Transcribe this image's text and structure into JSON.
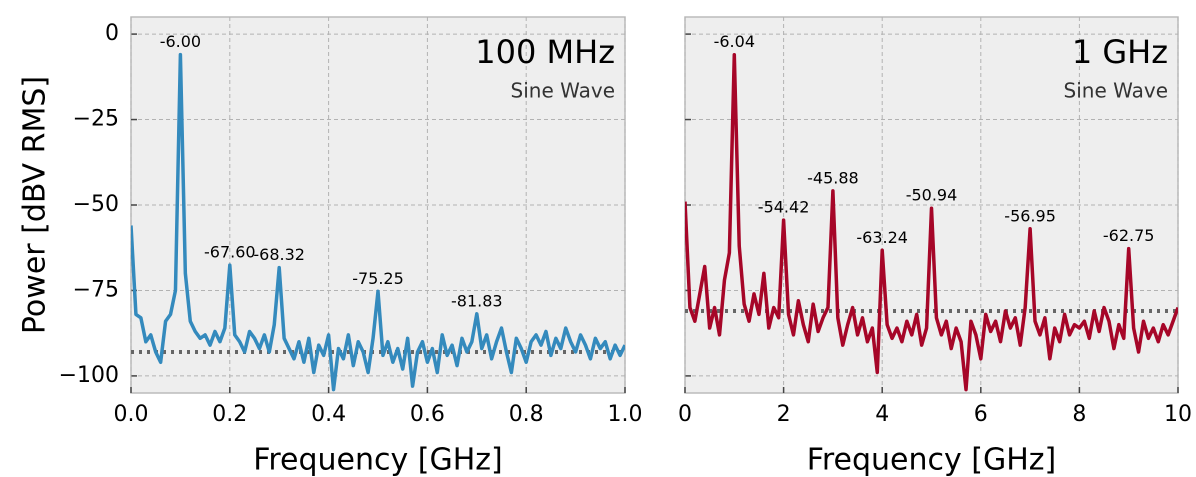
{
  "chart_data": [
    {
      "type": "line",
      "title": "100 MHz",
      "subtitle": "Sine Wave",
      "xlabel": "Frequency [GHz]",
      "ylabel": "Power [dBV RMS]",
      "xlim": [
        0,
        1.0
      ],
      "ylim": [
        -105,
        5
      ],
      "xticks": [
        {
          "value": 0,
          "label": "0.0"
        },
        0.2,
        0.4,
        0.6,
        0.8,
        {
          "value": 1.0,
          "label": "1.0"
        }
      ],
      "yticks": [
        {
          "value": -100,
          "label": "−100"
        },
        {
          "value": -75,
          "label": "−75"
        },
        {
          "value": -50,
          "label": "−50"
        },
        {
          "value": -25,
          "label": "−25"
        },
        0
      ],
      "ytick_labels": true,
      "grid": true,
      "noise_floor": -93,
      "x": [
        0,
        0.01,
        0.02,
        0.03,
        0.04,
        0.05,
        0.06,
        0.07,
        0.08,
        0.09,
        0.1,
        0.11,
        0.12,
        0.13,
        0.14,
        0.15,
        0.16,
        0.17,
        0.18,
        0.19,
        0.2,
        0.21,
        0.22,
        0.23,
        0.24,
        0.25,
        0.26,
        0.27,
        0.28,
        0.29,
        0.3,
        0.31,
        0.32,
        0.33,
        0.34,
        0.35,
        0.36,
        0.37,
        0.38,
        0.39,
        0.4,
        0.41,
        0.42,
        0.43,
        0.44,
        0.45,
        0.46,
        0.47,
        0.48,
        0.49,
        0.5,
        0.51,
        0.52,
        0.53,
        0.54,
        0.55,
        0.56,
        0.57,
        0.58,
        0.59,
        0.6,
        0.61,
        0.62,
        0.63,
        0.64,
        0.65,
        0.66,
        0.67,
        0.68,
        0.69,
        0.7,
        0.71,
        0.72,
        0.73,
        0.74,
        0.75,
        0.76,
        0.77,
        0.78,
        0.79,
        0.8,
        0.81,
        0.82,
        0.83,
        0.84,
        0.85,
        0.86,
        0.87,
        0.88,
        0.89,
        0.9,
        0.91,
        0.92,
        0.93,
        0.94,
        0.95,
        0.96,
        0.97,
        0.98,
        0.99,
        1.0
      ],
      "series": [
        {
          "color": "#348abd",
          "values": [
            -56,
            -82,
            -83,
            -90,
            -88,
            -93,
            -96,
            -84,
            -82,
            -75,
            -6,
            -70,
            -84,
            -87,
            -89,
            -88,
            -91,
            -87,
            -90,
            -86,
            -67.6,
            -88,
            -90,
            -93,
            -87,
            -89,
            -92,
            -88,
            -93,
            -85,
            -68.32,
            -89,
            -92,
            -95,
            -90,
            -96,
            -89,
            -99,
            -91,
            -94,
            -88,
            -104,
            -92,
            -95,
            -88,
            -97,
            -90,
            -93,
            -99,
            -89,
            -75.25,
            -94,
            -90,
            -96,
            -92,
            -98,
            -89,
            -103,
            -93,
            -90,
            -96,
            -92,
            -99,
            -88,
            -94,
            -91,
            -97,
            -89,
            -93,
            -90,
            -81.83,
            -92,
            -88,
            -95,
            -90,
            -86,
            -93,
            -99,
            -89,
            -92,
            -96,
            -90,
            -88,
            -91,
            -87,
            -94,
            -89,
            -92,
            -86,
            -90,
            -93,
            -88,
            -91,
            -95,
            -89,
            -92,
            -90,
            -95,
            -91,
            -94,
            -91
          ]
        }
      ],
      "annotations": [
        {
          "x": 0.1,
          "y": -6.0,
          "label": "-6.00"
        },
        {
          "x": 0.2,
          "y": -67.6,
          "label": "-67.60"
        },
        {
          "x": 0.3,
          "y": -68.32,
          "label": "-68.32"
        },
        {
          "x": 0.5,
          "y": -75.25,
          "label": "-75.25"
        },
        {
          "x": 0.7,
          "y": -81.83,
          "label": "-81.83"
        }
      ]
    },
    {
      "type": "line",
      "title": "1 GHz",
      "subtitle": "Sine Wave",
      "xlabel": "Frequency [GHz]",
      "xlim": [
        0,
        10
      ],
      "ylim": [
        -105,
        5
      ],
      "xticks": [
        0,
        2,
        4,
        6,
        8,
        10
      ],
      "yticks": [
        -100,
        -75,
        -50,
        -25,
        0
      ],
      "ytick_labels": false,
      "grid": true,
      "noise_floor": -81,
      "x": [
        0,
        0.1,
        0.2,
        0.3,
        0.4,
        0.5,
        0.6,
        0.7,
        0.8,
        0.9,
        1.0,
        1.1,
        1.2,
        1.3,
        1.4,
        1.5,
        1.6,
        1.7,
        1.8,
        1.9,
        2.0,
        2.1,
        2.2,
        2.3,
        2.4,
        2.5,
        2.6,
        2.7,
        2.8,
        2.9,
        3.0,
        3.1,
        3.2,
        3.3,
        3.4,
        3.5,
        3.6,
        3.7,
        3.8,
        3.9,
        4.0,
        4.1,
        4.2,
        4.3,
        4.4,
        4.5,
        4.6,
        4.7,
        4.8,
        4.9,
        5.0,
        5.1,
        5.2,
        5.3,
        5.4,
        5.5,
        5.6,
        5.7,
        5.8,
        5.9,
        6.0,
        6.1,
        6.2,
        6.3,
        6.4,
        6.5,
        6.6,
        6.7,
        6.8,
        6.9,
        7.0,
        7.1,
        7.2,
        7.3,
        7.4,
        7.5,
        7.6,
        7.7,
        7.8,
        7.9,
        8.0,
        8.1,
        8.2,
        8.3,
        8.4,
        8.5,
        8.6,
        8.7,
        8.8,
        8.9,
        9.0,
        9.1,
        9.2,
        9.3,
        9.4,
        9.5,
        9.6,
        9.7,
        9.8,
        9.9,
        10.0
      ],
      "series": [
        {
          "color": "#a60628",
          "values": [
            -49,
            -80,
            -84,
            -76,
            -68,
            -86,
            -80,
            -88,
            -72,
            -64,
            -6.04,
            -62,
            -79,
            -84,
            -76,
            -82,
            -70,
            -86,
            -80,
            -83,
            -54.42,
            -82,
            -88,
            -78,
            -85,
            -90,
            -79,
            -87,
            -83,
            -80,
            -45.88,
            -83,
            -91,
            -85,
            -80,
            -88,
            -83,
            -90,
            -86,
            -99,
            -63.24,
            -85,
            -89,
            -86,
            -90,
            -84,
            -88,
            -82,
            -91,
            -86,
            -50.94,
            -83,
            -88,
            -84,
            -92,
            -86,
            -90,
            -104,
            -84,
            -88,
            -95,
            -82,
            -87,
            -84,
            -90,
            -81,
            -86,
            -83,
            -91,
            -80,
            -56.95,
            -84,
            -88,
            -83,
            -95,
            -86,
            -90,
            -82,
            -88,
            -85,
            -86,
            -84,
            -89,
            -81,
            -87,
            -80,
            -84,
            -92,
            -85,
            -89,
            -62.75,
            -86,
            -93,
            -84,
            -89,
            -86,
            -90,
            -85,
            -88,
            -84,
            -80
          ]
        }
      ],
      "annotations": [
        {
          "x": 1.0,
          "y": -6.04,
          "label": "-6.04"
        },
        {
          "x": 2.0,
          "y": -54.42,
          "label": "-54.42"
        },
        {
          "x": 3.0,
          "y": -45.88,
          "label": "-45.88"
        },
        {
          "x": 4.0,
          "y": -63.24,
          "label": "-63.24"
        },
        {
          "x": 5.0,
          "y": -50.94,
          "label": "-50.94"
        },
        {
          "x": 7.0,
          "y": -56.95,
          "label": "-56.95"
        },
        {
          "x": 9.0,
          "y": -62.75,
          "label": "-62.75"
        }
      ]
    }
  ]
}
